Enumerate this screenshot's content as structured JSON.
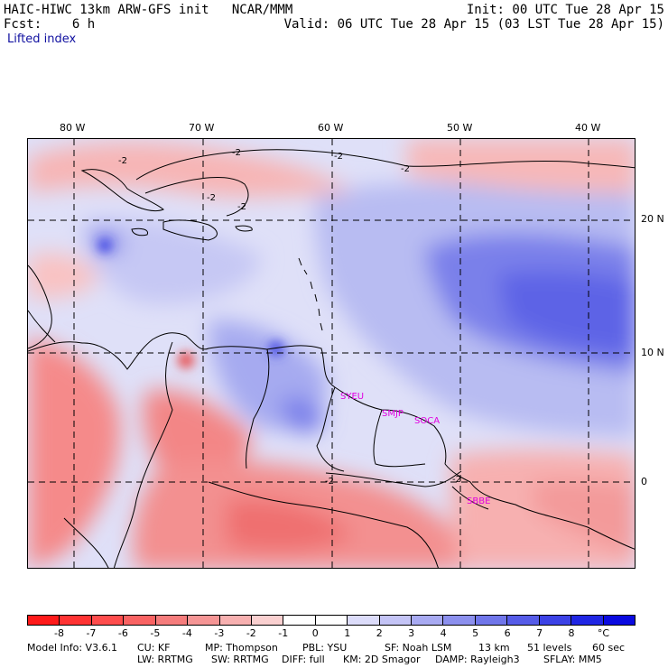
{
  "header": {
    "model_title": "HAIC-HIWC 13km ARW-GFS init   NCAR/MMM",
    "forecast": "Fcst:    6 h",
    "variable": "Lifted index",
    "init": "Init: 00 UTC Tue 28 Apr 15",
    "valid": "Valid: 06 UTC Tue 28 Apr 15 (03 LST Tue 28 Apr 15)"
  },
  "map": {
    "lon_labels": [
      "80 W",
      "70 W",
      "60 W",
      "50 W",
      "40 W"
    ],
    "lat_labels": [
      "20 N",
      "10 N",
      "0"
    ],
    "contour_labels": [
      "-2",
      "-2",
      "-2",
      "-2",
      "-2",
      "-2",
      "-2",
      "-2"
    ],
    "station_labels": [
      "SYEU",
      "SMJP",
      "SOCA",
      "SBBE"
    ],
    "station_color": "#e000e0"
  },
  "colorbar": {
    "labels": [
      "-8",
      "-7",
      "-6",
      "-5",
      "-4",
      "-3",
      "-2",
      "-1",
      "0",
      "1",
      "2",
      "3",
      "4",
      "5",
      "6",
      "7",
      "8",
      "°C"
    ],
    "colors": [
      "#ff1a1a",
      "#ff3333",
      "#ff4d4d",
      "#f96363",
      "#f57c7c",
      "#f59595",
      "#f7b0b0",
      "#fad0d0",
      "#ffffff",
      "#ffffff",
      "#dcdcfa",
      "#c4c4f6",
      "#a8aaf2",
      "#8c90ee",
      "#7076ea",
      "#565ce8",
      "#3c42e6",
      "#2026e4",
      "#0a0ae0"
    ]
  },
  "footer": {
    "line1": [
      "Model Info: V3.6.1",
      "CU: KF",
      "MP: Thompson",
      "PBL: YSU",
      "SF: Noah LSM",
      "13 km",
      "51 levels",
      "60 sec"
    ],
    "line2": [
      "LW: RRTMG",
      "SW: RRTMG",
      "DIFF: full",
      "KM: 2D Smagor",
      "DAMP: Rayleigh3",
      "SFLAY: MM5"
    ]
  }
}
